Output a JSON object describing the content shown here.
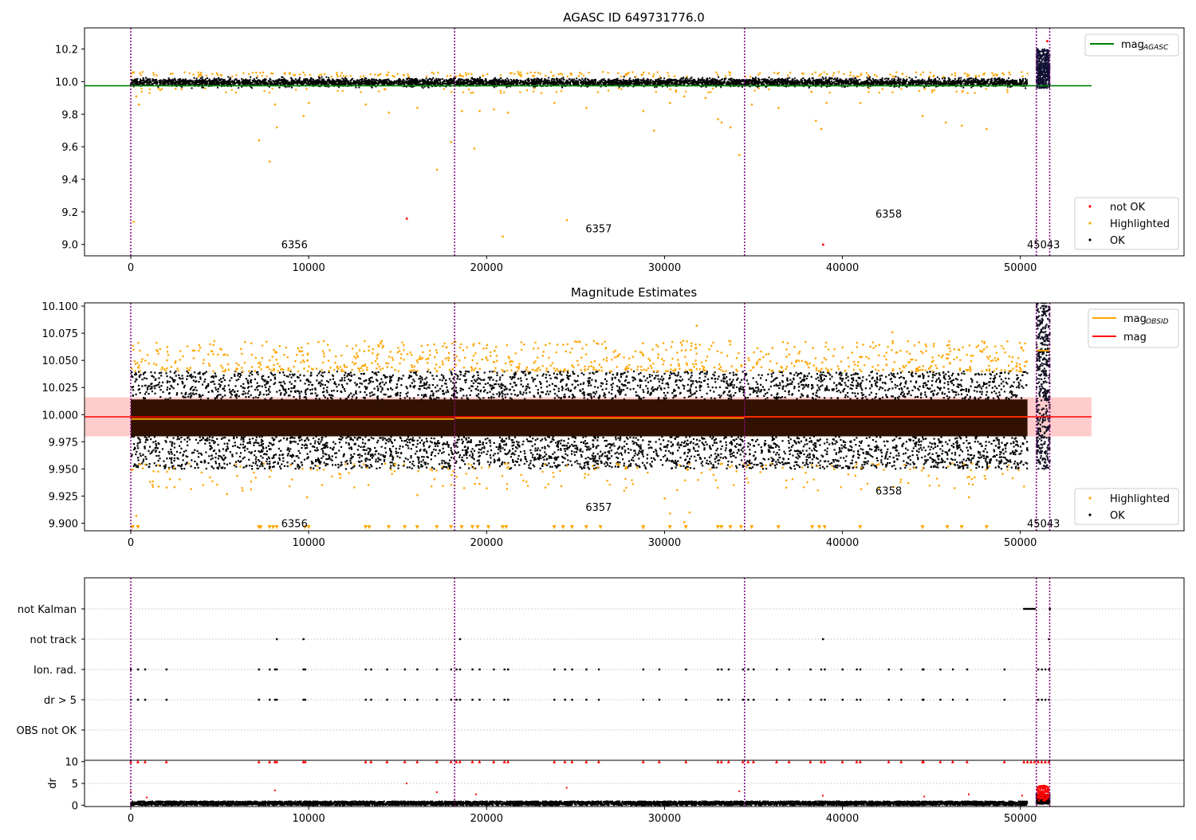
{
  "figure": {
    "title_top": "AGASC ID 649731776.0",
    "title_mid": "Magnitude Estimates"
  },
  "colors": {
    "ok": "#000000",
    "highlighted": "#ffa500",
    "not_ok": "#ff0000",
    "agasc_line": "#008000",
    "obsid_line": "#ffa500",
    "mag_line": "#ff0000",
    "obs_divider": "#800080",
    "band": "#ffcccc",
    "dense_band": "#331100"
  },
  "observations": [
    {
      "label": "6356",
      "start": 0,
      "label_x": 9200
    },
    {
      "label": "6357",
      "start": 18200,
      "label_x": 26300
    },
    {
      "label": "6358",
      "start": 34500,
      "label_x": 42600
    },
    {
      "label": "45043",
      "start": 50900,
      "label_x": 51300
    },
    {
      "label": "",
      "start": 51650,
      "label_x": null
    }
  ],
  "chart_data": [
    {
      "type": "scatter",
      "title": "AGASC ID 649731776.0",
      "xlim": [
        -2600,
        59200
      ],
      "ylim": [
        8.93,
        10.33
      ],
      "x_ticks": [
        0,
        10000,
        20000,
        30000,
        40000,
        50000
      ],
      "y_ticks": [
        "9.0",
        "9.2",
        "9.4",
        "9.6",
        "9.8",
        "10.0",
        "10.2"
      ],
      "obs_label_y": [
        9.0,
        9.1,
        9.19,
        9.0
      ],
      "legend_top": [
        {
          "label": "mag",
          "sub": "AGASC",
          "color": "#008000",
          "kind": "line"
        }
      ],
      "legend_bottom": [
        {
          "label": "not OK",
          "color": "#ff0000"
        },
        {
          "label": "Highlighted",
          "color": "#ffa500"
        },
        {
          "label": "OK",
          "color": "#000000"
        }
      ],
      "mag_agasc": 9.975,
      "mag_agasc_xrange": [
        -2600,
        54000
      ],
      "ok_band": [
        9.96,
        10.03
      ],
      "highlighted_outliers": [
        [
          150,
          9.14
        ],
        [
          300,
          9.91
        ],
        [
          450,
          9.86
        ],
        [
          7200,
          9.64
        ],
        [
          7800,
          9.51
        ],
        [
          8100,
          9.86
        ],
        [
          8200,
          9.72
        ],
        [
          9700,
          9.79
        ],
        [
          10000,
          9.87
        ],
        [
          13200,
          9.86
        ],
        [
          14500,
          9.81
        ],
        [
          16100,
          9.84
        ],
        [
          17200,
          9.46
        ],
        [
          18000,
          9.63
        ],
        [
          18600,
          9.82
        ],
        [
          19300,
          9.59
        ],
        [
          19600,
          9.82
        ],
        [
          20400,
          9.83
        ],
        [
          20900,
          9.05
        ],
        [
          21200,
          9.81
        ],
        [
          23800,
          9.87
        ],
        [
          24500,
          9.15
        ],
        [
          25600,
          9.84
        ],
        [
          28800,
          9.82
        ],
        [
          29400,
          9.7
        ],
        [
          30300,
          9.87
        ],
        [
          31100,
          9.91
        ],
        [
          32300,
          9.9
        ],
        [
          33000,
          9.77
        ],
        [
          33200,
          9.75
        ],
        [
          33700,
          9.72
        ],
        [
          34200,
          9.55
        ],
        [
          34900,
          9.86
        ],
        [
          36400,
          9.84
        ],
        [
          38500,
          9.76
        ],
        [
          38800,
          9.71
        ],
        [
          39100,
          9.87
        ],
        [
          41000,
          9.87
        ],
        [
          44500,
          9.79
        ],
        [
          45800,
          9.75
        ],
        [
          46700,
          9.73
        ],
        [
          48100,
          9.71
        ]
      ],
      "not_ok_outliers": [
        [
          15500,
          9.16
        ],
        [
          38900,
          9.0
        ],
        [
          51500,
          10.25
        ]
      ],
      "last_obs_cluster": {
        "x": [
          50900,
          51650
        ],
        "y": [
          9.96,
          10.2
        ]
      }
    },
    {
      "type": "scatter",
      "title": "Magnitude Estimates",
      "xlim": [
        -2600,
        59200
      ],
      "ylim": [
        9.893,
        10.103
      ],
      "x_ticks": [
        0,
        10000,
        20000,
        30000,
        40000,
        50000
      ],
      "y_ticks": [
        "9.900",
        "9.925",
        "9.950",
        "9.975",
        "10.000",
        "10.025",
        "10.050",
        "10.075",
        "10.100"
      ],
      "obs_label_y": [
        9.9,
        9.915,
        9.93,
        9.9
      ],
      "legend_top": [
        {
          "label": "mag",
          "sub": "OBSID",
          "color": "#ffa500",
          "kind": "line"
        },
        {
          "label": "mag",
          "sub": "",
          "color": "#ff0000",
          "kind": "line"
        }
      ],
      "legend_bottom": [
        {
          "label": "Highlighted",
          "color": "#ffa500"
        },
        {
          "label": "OK",
          "color": "#000000"
        }
      ],
      "mag": 9.998,
      "mag_band": [
        9.98,
        10.016
      ],
      "mag_xrange": [
        -2600,
        54000
      ],
      "mag_obsid": [
        {
          "x": [
            0,
            18200
          ],
          "y": 9.996
        },
        {
          "x": [
            18200,
            34500
          ],
          "y": 9.997
        },
        {
          "x": [
            34500,
            50400
          ],
          "y": 9.998
        },
        {
          "x": [
            50900,
            51650
          ],
          "y": 10.059
        }
      ],
      "dense_band": [
        9.98,
        10.014
      ],
      "ok_scatter_range": [
        9.95,
        10.04
      ],
      "highlighted_range_upper": [
        10.04,
        10.068
      ],
      "highlighted_range_lower": [
        9.93,
        9.955
      ],
      "highlighted_outliers": [
        [
          300,
          9.907
        ],
        [
          2000,
          9.933
        ],
        [
          5400,
          9.927
        ],
        [
          9900,
          9.924
        ],
        [
          16100,
          9.926
        ],
        [
          23300,
          9.933
        ],
        [
          28800,
          9.896
        ],
        [
          30000,
          9.923
        ],
        [
          30300,
          9.909
        ],
        [
          31100,
          9.901
        ],
        [
          31800,
          10.082
        ],
        [
          31400,
          9.91
        ],
        [
          42800,
          10.076
        ],
        [
          47100,
          9.924
        ],
        [
          50200,
          9.934
        ]
      ],
      "floor_triangles": [
        100,
        400,
        7200,
        7300,
        7800,
        8000,
        8200,
        9800,
        10000,
        13200,
        13400,
        14500,
        15400,
        16100,
        17200,
        18000,
        18600,
        19200,
        19500,
        20100,
        20900,
        21100,
        23800,
        24300,
        24800,
        25600,
        26400,
        28800,
        30300,
        31200,
        33000,
        33200,
        33700,
        34300,
        34900,
        36400,
        38300,
        38700,
        39000,
        41000,
        44500,
        45900,
        46700,
        48100
      ]
    },
    {
      "type": "flags",
      "xlim": [
        -2600,
        59200
      ],
      "rows": [
        "not Kalman",
        "not track",
        "Ion. rad.",
        "dr > 5",
        "OBS not OK"
      ],
      "not_kalman": [
        50200,
        50300,
        50400,
        50500,
        50600,
        50700,
        50800,
        51650
      ],
      "not_track": [
        8200,
        9700,
        18500,
        38900,
        51600
      ],
      "ion_rad": [
        0,
        400,
        800,
        2000,
        7200,
        7800,
        8100,
        8200,
        9700,
        9800,
        13200,
        13500,
        14400,
        15400,
        16100,
        17200,
        18000,
        18300,
        18500,
        19200,
        19600,
        20400,
        21000,
        21200,
        23800,
        24400,
        24800,
        25600,
        26300,
        28800,
        29700,
        31200,
        33000,
        33200,
        33600,
        34400,
        34700,
        35000,
        36300,
        37000,
        38200,
        38800,
        39000,
        40000,
        40800,
        41000,
        42600,
        43300,
        44500,
        44550,
        45500,
        46200,
        47000,
        49100,
        51000,
        51200,
        51400,
        51600
      ],
      "dr_gt_5": [
        0,
        400,
        800,
        2000,
        7200,
        7800,
        8100,
        8200,
        9700,
        9800,
        13200,
        13500,
        14400,
        15400,
        16100,
        17200,
        18000,
        18300,
        18500,
        19200,
        19600,
        20400,
        21000,
        21200,
        23800,
        24400,
        24800,
        25600,
        26300,
        28800,
        29700,
        31200,
        33000,
        33200,
        33600,
        34400,
        34700,
        35000,
        36300,
        37000,
        38200,
        38800,
        39000,
        40000,
        40800,
        41000,
        42600,
        43300,
        44500,
        44550,
        45500,
        46200,
        47000,
        49100,
        51000,
        51200,
        51400,
        51600
      ]
    },
    {
      "type": "scatter",
      "ylabel": "dr",
      "xlim": [
        -2600,
        59200
      ],
      "ylim": [
        -0.3,
        10.3
      ],
      "x_ticks": [
        0,
        10000,
        20000,
        30000,
        40000,
        50000
      ],
      "y_ticks": [
        "0",
        "5",
        "10"
      ],
      "base_range": [
        0,
        0.9
      ],
      "capped_red": [
        0,
        400,
        800,
        2000,
        7200,
        7800,
        8100,
        8200,
        9700,
        9800,
        13200,
        13500,
        14400,
        15400,
        16100,
        17200,
        18000,
        18300,
        18500,
        19200,
        19600,
        20400,
        21000,
        21200,
        23800,
        24400,
        24800,
        25600,
        26300,
        28800,
        29700,
        31200,
        33000,
        33200,
        33600,
        34400,
        34700,
        35000,
        36300,
        37000,
        38200,
        38800,
        39000,
        40000,
        40800,
        41000,
        42600,
        43300,
        44500,
        44550,
        45500,
        46200,
        47000,
        49100,
        50200,
        50400,
        50600,
        50800,
        51000,
        51200,
        51400,
        51600
      ],
      "mid_points": [
        [
          0,
          3.0
        ],
        [
          8100,
          3.4
        ],
        [
          15500,
          5.0
        ],
        [
          17200,
          3.0
        ],
        [
          19400,
          2.5
        ],
        [
          24500,
          4.0
        ],
        [
          34200,
          3.2
        ],
        [
          44600,
          2.0
        ],
        [
          47100,
          2.5
        ],
        [
          38900,
          2.2
        ],
        [
          50100,
          2.2
        ],
        [
          900,
          1.8
        ]
      ]
    }
  ]
}
